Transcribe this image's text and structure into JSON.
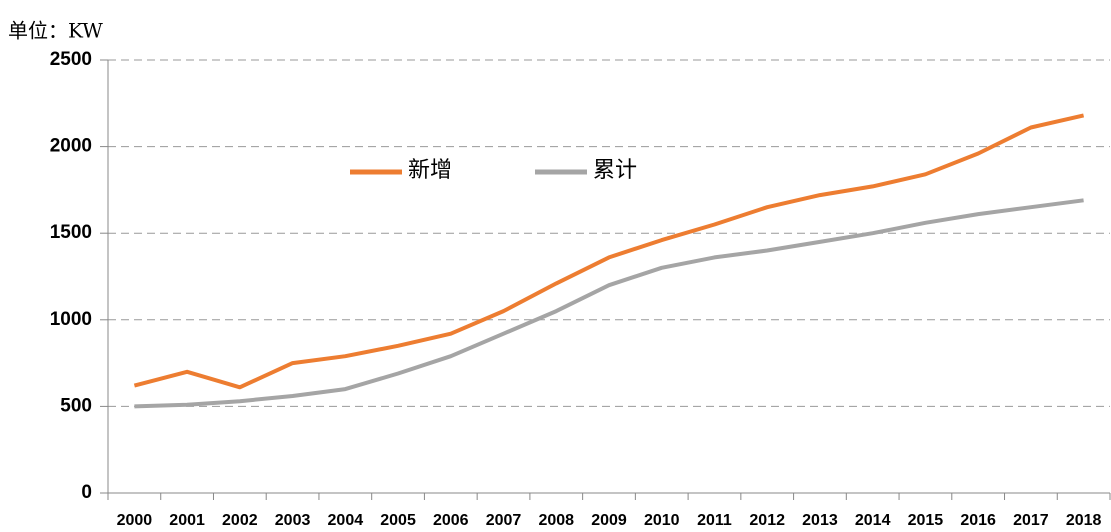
{
  "chart_data": {
    "type": "line",
    "unit_label": "单位：KW",
    "categories": [
      "2000",
      "2001",
      "2002",
      "2003",
      "2004",
      "2005",
      "2006",
      "2007",
      "2008",
      "2009",
      "2010",
      "2011",
      "2012",
      "2013",
      "2014",
      "2015",
      "2016",
      "2017",
      "2018"
    ],
    "series": [
      {
        "name": "新增",
        "color": "#ed7d31",
        "values": [
          620,
          700,
          610,
          750,
          790,
          850,
          920,
          1050,
          1210,
          1360,
          1460,
          1550,
          1650,
          1720,
          1770,
          1840,
          1960,
          2110,
          2180
        ]
      },
      {
        "name": "累计",
        "color": "#a5a5a5",
        "values": [
          500,
          510,
          530,
          560,
          600,
          690,
          790,
          920,
          1050,
          1200,
          1300,
          1360,
          1400,
          1450,
          1500,
          1560,
          1610,
          1650,
          1690
        ]
      }
    ],
    "ylim": [
      0,
      2500
    ],
    "yticks": [
      0,
      500,
      1000,
      1500,
      2000,
      2500
    ],
    "grid": true
  }
}
